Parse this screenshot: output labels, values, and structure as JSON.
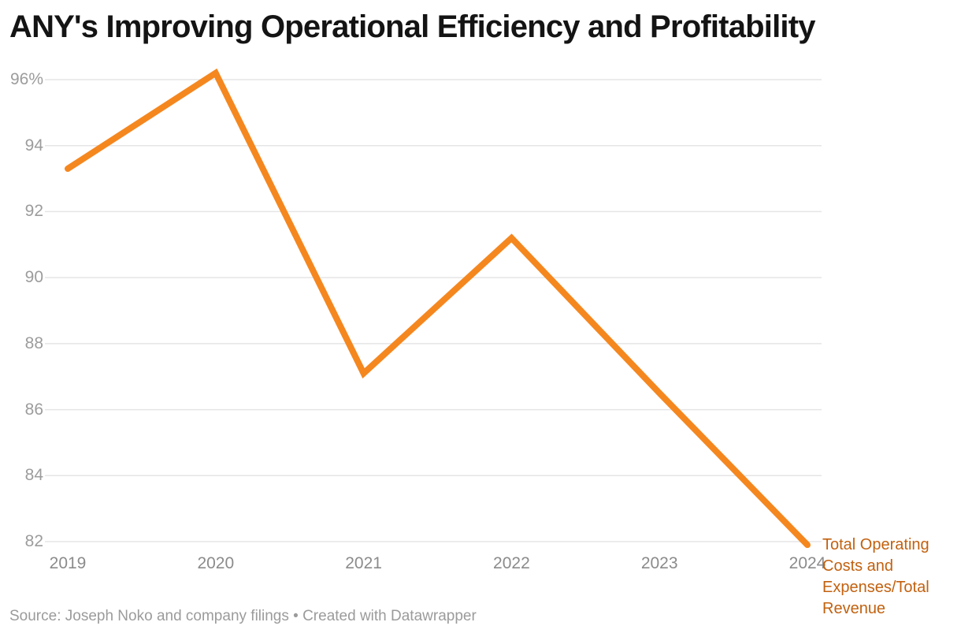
{
  "header": {
    "title": "ANY's Improving Operational Efficiency and Profitability"
  },
  "legend": {
    "label": "Total Operating Costs and Expenses/Total Revenue"
  },
  "footer": {
    "source": "Source: Joseph Noko and company filings • Created with Datawrapper"
  },
  "colors": {
    "line": "#F5871F",
    "legend_text": "#C2610F",
    "grid": "#E5E5E5",
    "y_tick_text": "#9C9C9C",
    "x_tick_text": "#8B8B8B",
    "title_text": "#141414",
    "source_text": "#9B9B9B",
    "background": "#FFFFFF"
  },
  "chart_data": {
    "type": "line",
    "title": "ANY's Improving Operational Efficiency and Profitability",
    "x": [
      "2019",
      "2020",
      "2021",
      "2022",
      "2023",
      "2024"
    ],
    "series": [
      {
        "name": "Total Operating Costs and Expenses/Total Revenue",
        "values": [
          93.3,
          96.2,
          87.1,
          91.2,
          86.5,
          81.9
        ],
        "color": "#F5871F"
      }
    ],
    "xlabel": "",
    "ylabel": "",
    "yticks": [
      {
        "label": "96%",
        "value": 96
      },
      {
        "label": "94",
        "value": 94
      },
      {
        "label": "92",
        "value": 92
      },
      {
        "label": "90",
        "value": 90
      },
      {
        "label": "88",
        "value": 88
      },
      {
        "label": "86",
        "value": 86
      },
      {
        "label": "84",
        "value": 84
      },
      {
        "label": "82",
        "value": 82
      }
    ],
    "ylim": [
      81.65,
      96.45
    ],
    "grid": "horizontal-only",
    "legend_position": "right-of-line-end",
    "unit": "percent"
  }
}
